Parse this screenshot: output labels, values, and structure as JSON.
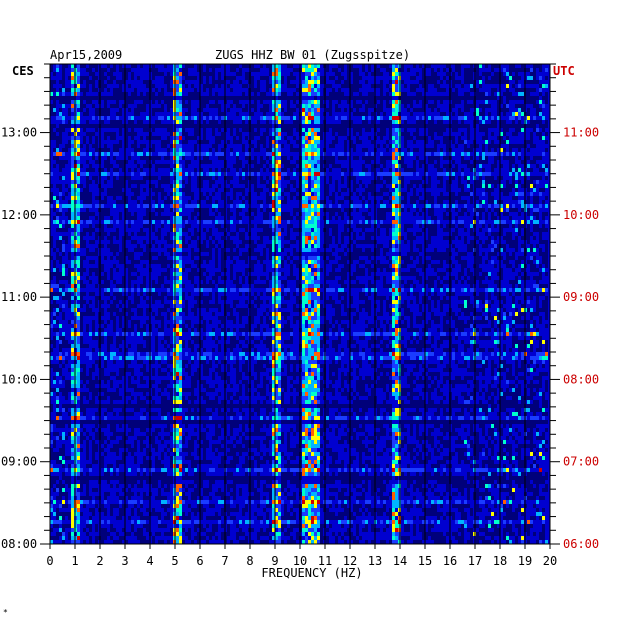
{
  "chart_data": {
    "type": "heatmap",
    "date": "Apr15,2009",
    "title": "ZUGS HHZ BW 01 (Zugsspitze)",
    "xlabel": "FREQUENCY (HZ)",
    "left_axis_label": "CES",
    "right_axis_label": "UTC",
    "xlim": [
      0,
      20
    ],
    "x_ticks": [
      "0",
      "1",
      "2",
      "3",
      "4",
      "5",
      "6",
      "7",
      "8",
      "9",
      "10",
      "11",
      "12",
      "13",
      "14",
      "15",
      "16",
      "17",
      "18",
      "19",
      "20"
    ],
    "left_time_ticks": [
      "08:00",
      "09:00",
      "10:00",
      "11:00",
      "12:00",
      "13:00"
    ],
    "right_time_ticks": [
      "06:00",
      "07:00",
      "08:00",
      "09:00",
      "10:00",
      "11:00"
    ],
    "time_range_ces": [
      "08:00",
      "13:50"
    ],
    "colorscale": [
      "#00007a",
      "#0000d0",
      "#1a3cff",
      "#00b4ff",
      "#00ffcc",
      "#ffff00",
      "#ff6000",
      "#d00000"
    ],
    "strong_bands_hz": [
      1.0,
      5.0,
      9.0,
      10.2,
      10.6,
      13.8
    ],
    "corner_mark": "*"
  }
}
